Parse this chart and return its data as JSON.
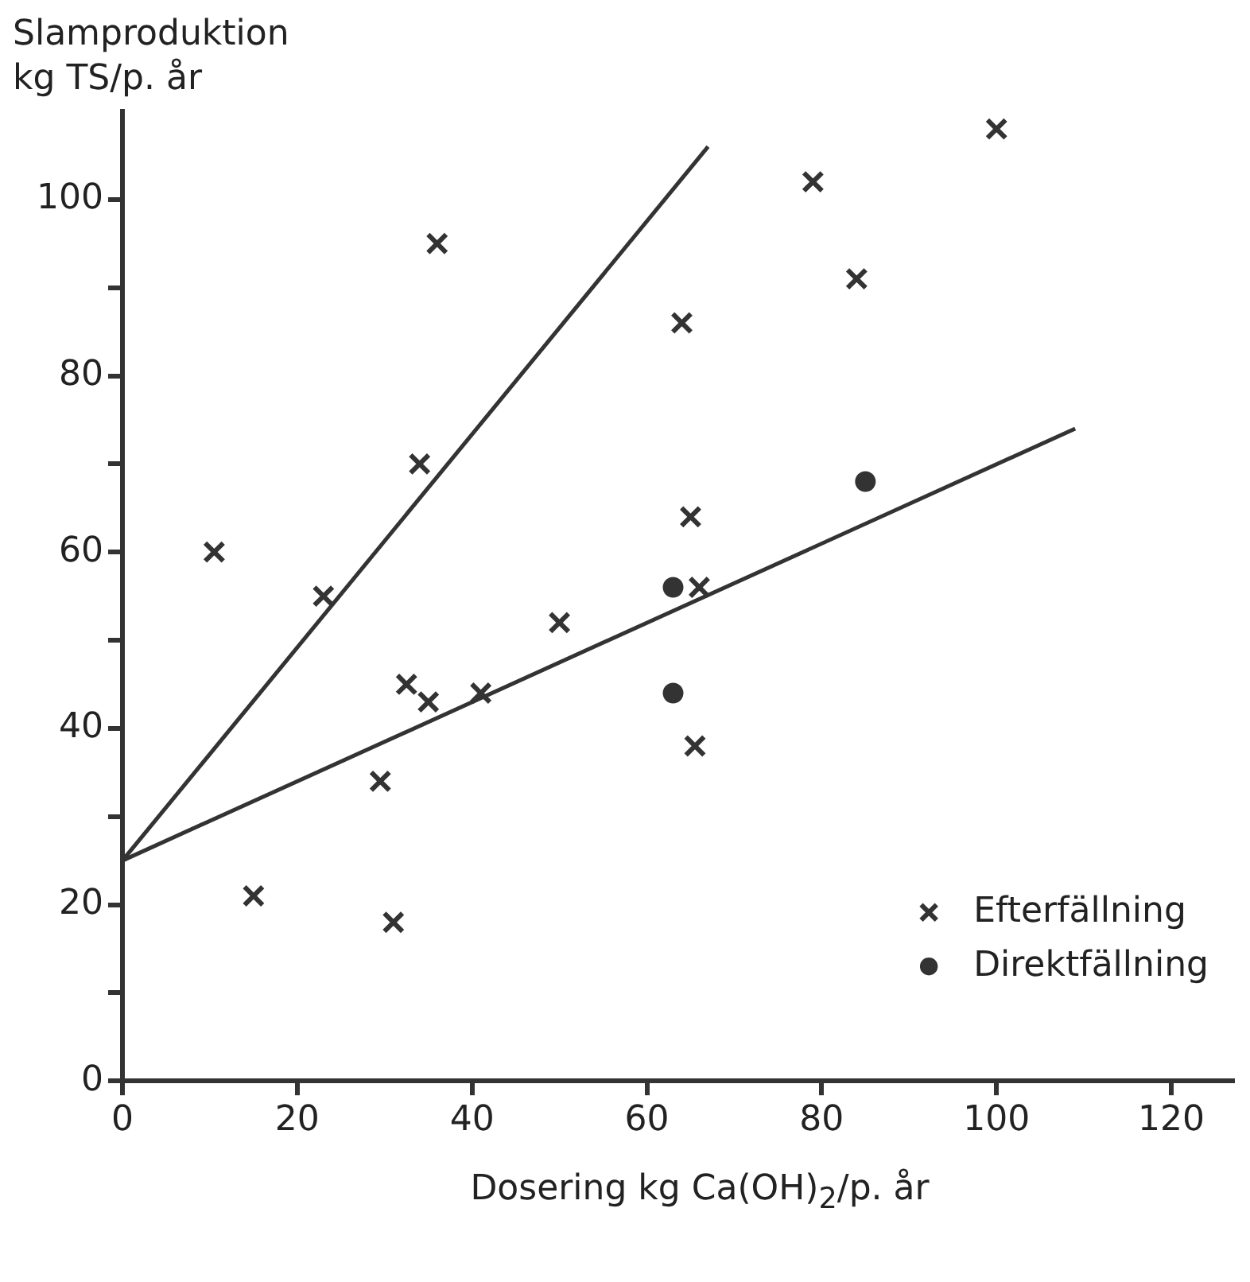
{
  "chart_data": {
    "type": "scatter",
    "ylabel": "Slamproduktion kg TS/p. år",
    "xlabel": "Dosering kg Ca(OH)$_{2}$/p. år",
    "xlim": [
      0,
      127
    ],
    "xticks": [
      0,
      20,
      40,
      60,
      80,
      100,
      120
    ],
    "ylim": [
      0,
      110
    ],
    "yticks": [
      0,
      {
        "value": 10,
        "label": null
      },
      20,
      {
        "value": 30,
        "label": null
      },
      40,
      {
        "value": 50,
        "label": null
      },
      60,
      {
        "value": 70,
        "label": null
      },
      80,
      {
        "value": 90,
        "label": null
      },
      100
    ],
    "grid": false,
    "legend": "bottom right",
    "series": [
      {
        "name": "Efterfällning",
        "color": "#333333",
        "marker": "cross",
        "x": [
          10.5,
          15,
          23,
          29.5,
          31,
          32.5,
          34,
          35,
          36,
          41,
          50,
          64,
          65,
          66,
          65.5,
          79,
          84,
          100
        ],
        "values": [
          60,
          21,
          55,
          34,
          18,
          45,
          70,
          43,
          95,
          44,
          52,
          86,
          64,
          56,
          38,
          102,
          91,
          108
        ]
      },
      {
        "name": "Direktfällning",
        "color": "#333333",
        "marker": "circle",
        "x": [
          63,
          63,
          85
        ],
        "values": [
          56,
          44,
          68
        ]
      },
      {
        "type": "line",
        "color": "#333333",
        "marker": "none",
        "x": [
          0,
          67
        ],
        "values": [
          25,
          106
        ]
      },
      {
        "type": "line",
        "color": "#333333",
        "marker": "none",
        "x": [
          0,
          109
        ],
        "values": [
          25,
          74
        ]
      }
    ]
  }
}
